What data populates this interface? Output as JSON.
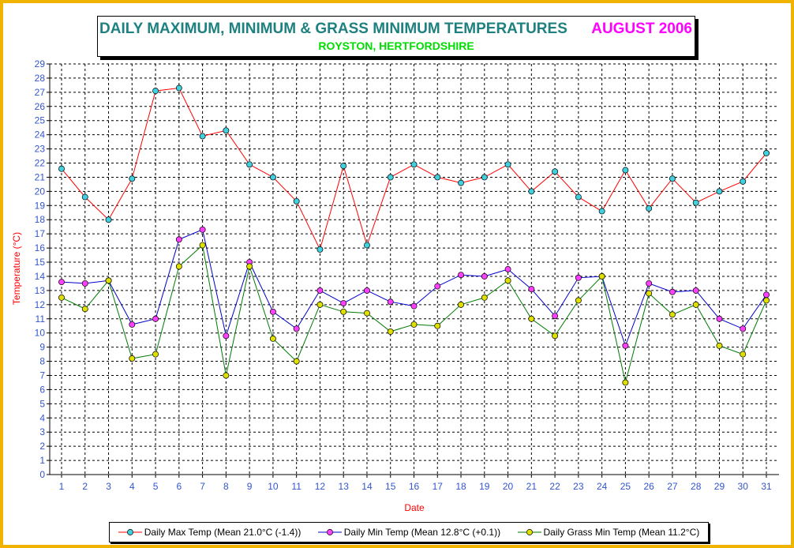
{
  "header": {
    "title": "DAILY MAXIMUM, MINIMUM & GRASS MINIMUM TEMPERATURES",
    "period": "AUGUST 2006",
    "subtitle": "ROYSTON, HERTFORDSHIRE"
  },
  "chart_data": {
    "type": "line",
    "title": "DAILY MAXIMUM, MINIMUM & GRASS MINIMUM TEMPERATURES",
    "subtitle": "ROYSTON, HERTFORDSHIRE",
    "xlabel": "Date",
    "ylabel": "Temperature (°C)",
    "x": [
      1,
      2,
      3,
      4,
      5,
      6,
      7,
      8,
      9,
      10,
      11,
      12,
      13,
      14,
      15,
      16,
      17,
      18,
      19,
      20,
      21,
      22,
      23,
      24,
      25,
      26,
      27,
      28,
      29,
      30,
      31
    ],
    "ylim": [
      0,
      29
    ],
    "yticks": [
      0,
      1,
      2,
      3,
      4,
      5,
      6,
      7,
      8,
      9,
      10,
      11,
      12,
      13,
      14,
      15,
      16,
      17,
      18,
      19,
      20,
      21,
      22,
      23,
      24,
      25,
      26,
      27,
      28,
      29
    ],
    "grid": true,
    "legend_position": "bottom",
    "series": [
      {
        "name": "Daily Max Temp (Mean 21.0°C (-1.4))",
        "line_color": "#ff0000",
        "marker_color": "#40d0e0",
        "values": [
          21.6,
          19.6,
          18.0,
          20.9,
          27.1,
          27.3,
          23.9,
          24.3,
          21.9,
          21.0,
          19.3,
          15.9,
          21.8,
          16.2,
          21.0,
          21.9,
          21.0,
          20.6,
          21.0,
          21.9,
          20.0,
          21.4,
          19.6,
          18.6,
          21.5,
          18.8,
          20.9,
          19.2,
          20.0,
          20.7,
          22.7
        ]
      },
      {
        "name": "Daily Min Temp (Mean 12.8°C (+0.1))",
        "line_color": "#0000cc",
        "marker_color": "#ff40ff",
        "values": [
          13.6,
          13.5,
          13.7,
          10.6,
          11.0,
          16.6,
          17.3,
          9.8,
          15.0,
          11.5,
          10.3,
          13.0,
          12.1,
          13.0,
          12.2,
          11.9,
          13.3,
          14.1,
          14.0,
          14.5,
          13.1,
          11.2,
          13.9,
          14.0,
          9.1,
          13.5,
          12.9,
          13.0,
          11.0,
          10.3,
          12.7
        ]
      },
      {
        "name": "Daily Grass Min Temp (Mean 11.2°C)",
        "line_color": "#007a00",
        "marker_color": "#e0e000",
        "values": [
          12.5,
          11.7,
          13.7,
          8.2,
          8.5,
          14.7,
          16.2,
          7.0,
          14.7,
          9.6,
          8.0,
          12.0,
          11.5,
          11.4,
          10.1,
          10.6,
          10.5,
          12.0,
          12.5,
          13.7,
          11.0,
          9.8,
          12.3,
          14.0,
          6.5,
          12.8,
          11.3,
          12.0,
          9.1,
          8.5,
          12.3
        ]
      }
    ]
  },
  "colors": {
    "frame": "#f0b400",
    "axis_tick_labels": "#3355cc",
    "axis_titles": "#ff0000"
  }
}
